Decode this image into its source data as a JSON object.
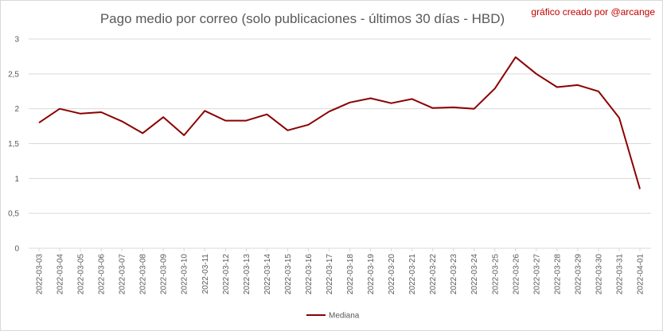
{
  "credit": "gráfico creado por @arcange",
  "chart_data": {
    "type": "line",
    "title": "Pago medio por correo (solo publicaciones - últimos 30 días - HBD)",
    "xlabel": "",
    "ylabel": "",
    "ylim": [
      0,
      3
    ],
    "yticks": [
      "0",
      "0,5",
      "1",
      "1,5",
      "2",
      "2,5",
      "3"
    ],
    "grid": true,
    "legend_position": "bottom",
    "colors": {
      "series": "#8b0000",
      "grid": "#d9d9d9",
      "text": "#595959"
    },
    "categories": [
      "2022-03-03",
      "2022-03-04",
      "2022-03-05",
      "2022-03-06",
      "2022-03-07",
      "2022-03-08",
      "2022-03-09",
      "2022-03-10",
      "2022-03-11",
      "2022-03-12",
      "2022-03-13",
      "2022-03-14",
      "2022-03-15",
      "2022-03-16",
      "2022-03-17",
      "2022-03-18",
      "2022-03-19",
      "2022-03-20",
      "2022-03-21",
      "2022-03-22",
      "2022-03-23",
      "2022-03-24",
      "2022-03-25",
      "2022-03-26",
      "2022-03-27",
      "2022-03-28",
      "2022-03-29",
      "2022-03-30",
      "2022-03-31",
      "2022-04-01"
    ],
    "series": [
      {
        "name": "Mediana",
        "values": [
          1.8,
          2.0,
          1.93,
          1.95,
          1.82,
          1.65,
          1.88,
          1.62,
          1.97,
          1.83,
          1.83,
          1.92,
          1.69,
          1.77,
          1.96,
          2.09,
          2.15,
          2.08,
          2.14,
          2.01,
          2.02,
          2.0,
          2.29,
          2.74,
          2.5,
          2.31,
          2.34,
          2.25,
          1.87,
          0.85
        ]
      }
    ]
  }
}
